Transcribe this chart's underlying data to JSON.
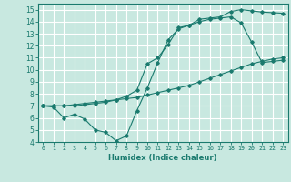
{
  "xlabel": "Humidex (Indice chaleur)",
  "bg_color": "#c8e8e0",
  "grid_color": "#ffffff",
  "line_color": "#1a7a6e",
  "xlim": [
    -0.5,
    23.5
  ],
  "ylim": [
    4,
    15.5
  ],
  "xticks": [
    0,
    1,
    2,
    3,
    4,
    5,
    6,
    7,
    8,
    9,
    10,
    11,
    12,
    13,
    14,
    15,
    16,
    17,
    18,
    19,
    20,
    21,
    22,
    23
  ],
  "yticks": [
    4,
    5,
    6,
    7,
    8,
    9,
    10,
    11,
    12,
    13,
    14,
    15
  ],
  "line1_x": [
    0,
    1,
    2,
    3,
    4,
    5,
    6,
    7,
    8,
    9,
    10,
    11,
    12,
    13,
    14,
    15,
    16,
    17,
    18,
    19,
    20,
    21,
    22,
    23
  ],
  "line1_y": [
    7.0,
    7.0,
    7.0,
    7.1,
    7.2,
    7.3,
    7.4,
    7.5,
    7.6,
    7.7,
    7.9,
    8.1,
    8.3,
    8.5,
    8.7,
    9.0,
    9.3,
    9.6,
    9.9,
    10.2,
    10.5,
    10.7,
    10.9,
    11.0
  ],
  "line2_x": [
    0,
    1,
    2,
    3,
    4,
    5,
    6,
    7,
    8,
    9,
    10,
    11,
    12,
    13,
    14,
    15,
    16,
    17,
    18,
    19,
    20,
    21,
    22,
    23
  ],
  "line2_y": [
    7.0,
    7.0,
    7.0,
    7.0,
    7.1,
    7.2,
    7.3,
    7.5,
    7.8,
    8.3,
    10.5,
    11.0,
    12.1,
    13.5,
    13.7,
    14.2,
    14.3,
    14.4,
    14.85,
    15.0,
    14.9,
    14.8,
    14.75,
    14.7
  ],
  "line3_x": [
    0,
    1,
    2,
    3,
    4,
    5,
    6,
    7,
    8,
    9,
    10,
    11,
    12,
    13,
    14,
    15,
    16,
    17,
    18,
    19,
    20,
    21,
    22,
    23
  ],
  "line3_y": [
    7.0,
    6.9,
    6.0,
    6.3,
    5.9,
    5.0,
    4.8,
    4.1,
    4.5,
    6.6,
    8.5,
    10.6,
    12.5,
    13.4,
    13.7,
    14.0,
    14.2,
    14.3,
    14.4,
    13.9,
    12.3,
    10.6,
    10.7,
    10.8
  ]
}
